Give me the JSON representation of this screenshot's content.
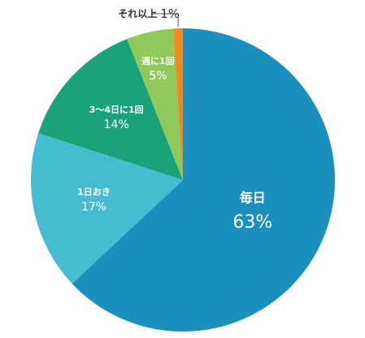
{
  "chart_data": {
    "type": "pie",
    "categories": [
      "毎日",
      "1日おき",
      "3〜4日に1回",
      "週に1回",
      "それ以上"
    ],
    "values": [
      63,
      17,
      14,
      5,
      1
    ],
    "value_labels": [
      "63%",
      "17%",
      "14%",
      "5%",
      "1%"
    ],
    "colors": [
      "#1b8fbe",
      "#47bcd1",
      "#1aa37b",
      "#8fc95b",
      "#f0891b"
    ]
  }
}
